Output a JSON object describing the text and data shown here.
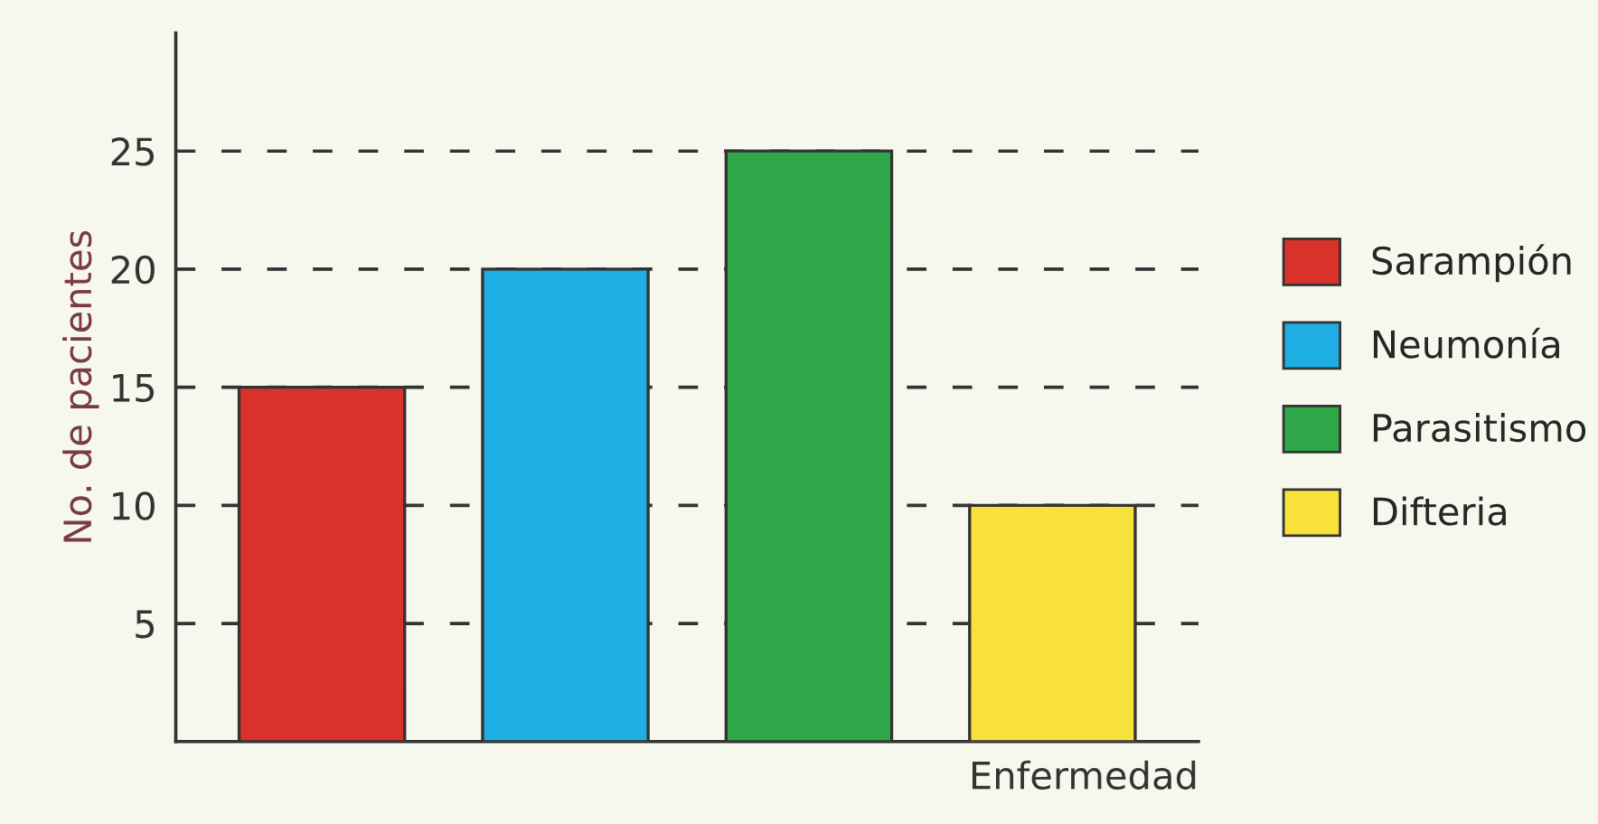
{
  "chart_data": {
    "type": "bar",
    "xlabel": "Enfermedad",
    "ylabel": "No. de pacientes",
    "categories": [
      null,
      null,
      null,
      null
    ],
    "series": [
      {
        "name": "Sarampión",
        "color": "#d8322b",
        "values": [
          15,
          null,
          null,
          null
        ]
      },
      {
        "name": "Neumonía",
        "color": "#1eaee3",
        "values": [
          null,
          20,
          null,
          null
        ]
      },
      {
        "name": "Parasitismo",
        "color": "#2fa84a",
        "values": [
          null,
          null,
          25,
          null
        ]
      },
      {
        "name": "Difteria",
        "color": "#f7e13a",
        "values": [
          null,
          null,
          null,
          10
        ]
      }
    ],
    "ylim": [
      0,
      30
    ],
    "yticks": [
      5,
      10,
      15,
      20,
      25
    ],
    "grid": "y",
    "legend": "right"
  }
}
